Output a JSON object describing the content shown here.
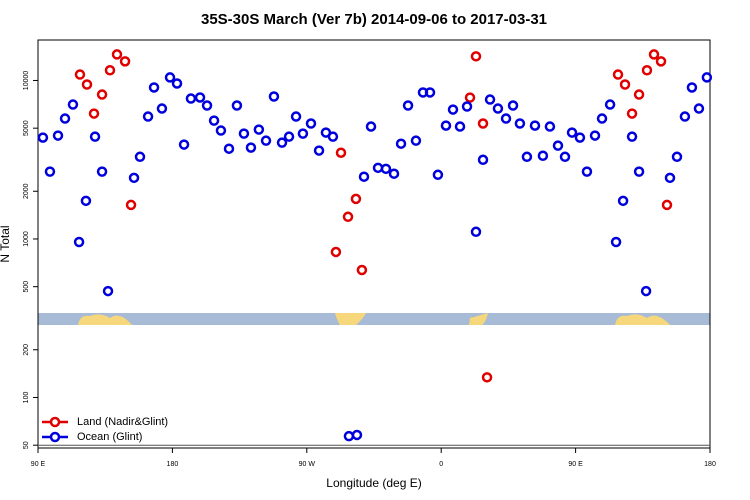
{
  "chart_data": {
    "type": "scatter",
    "title": "35S-30S March (Ver 7b)   2014-09-06 to 2017-03-31",
    "x_label": "Longitude (deg E)",
    "y_label": "N Total",
    "log_y": true,
    "legend": "lower left",
    "xlim": [
      90,
      540
    ],
    "xticks": [
      {
        "value": 90,
        "label": "90 E"
      },
      180,
      {
        "value": 270,
        "label": "90 W"
      },
      {
        "value": 360,
        "label": "0"
      },
      {
        "value": 450,
        "label": "90 E"
      },
      {
        "value": 540,
        "label": "180"
      }
    ],
    "ylim": [
      48,
      18000
    ],
    "yticks": [
      50,
      100,
      200,
      500,
      1000,
      2000,
      5000,
      10000
    ],
    "series": [
      {
        "name": "Land (Nadir&Glint)",
        "color": "#e00000",
        "x": [
          118.1,
          122.8,
          127.5,
          132.9,
          138.2,
          142.9,
          148.3,
          152.3,
          289.5,
          292.9,
          297.6,
          302.9,
          306.9,
          379.3,
          383.3,
          388.0,
          390.7,
          478.4,
          483.1,
          487.8,
          492.5,
          497.8,
          502.5,
          507.2,
          511.2
        ],
        "values": [
          10900,
          9430,
          6180,
          8150,
          11600,
          14600,
          13200,
          1640,
          828,
          3500,
          1380,
          1790,
          637,
          7800,
          14200,
          5350,
          134,
          10900,
          9430,
          6180,
          8150,
          11600,
          14600,
          13200,
          1640
        ]
      },
      {
        "name": "Ocean (Glint)",
        "color": "#0000dd",
        "x": [
          93.3,
          98.0,
          103.4,
          108.1,
          113.4,
          117.5,
          122.1,
          128.2,
          132.9,
          136.9,
          154.3,
          158.3,
          163.7,
          167.7,
          173.0,
          178.4,
          183.1,
          187.8,
          192.4,
          198.5,
          203.2,
          207.9,
          212.5,
          217.9,
          223.2,
          227.9,
          232.6,
          237.9,
          242.7,
          248.0,
          253.4,
          258.1,
          262.8,
          267.4,
          272.8,
          278.2,
          282.8,
          287.5,
          298.2,
          303.6,
          308.3,
          313.0,
          317.7,
          323.0,
          328.4,
          333.1,
          337.8,
          343.1,
          347.8,
          352.5,
          357.8,
          363.2,
          367.9,
          372.6,
          377.3,
          383.3,
          388.0,
          392.7,
          398.0,
          403.4,
          408.1,
          412.7,
          417.4,
          422.8,
          428.1,
          432.8,
          438.2,
          442.9,
          447.6,
          452.9,
          457.6,
          463.0,
          467.7,
          473.1,
          477.1,
          481.8,
          487.8,
          492.5,
          497.2,
          513.2,
          517.9,
          523.2,
          527.9,
          532.6,
          537.9
        ],
        "values": [
          4360,
          2660,
          4490,
          5750,
          7050,
          957,
          1740,
          4420,
          2660,
          469,
          2430,
          3300,
          5920,
          9030,
          6650,
          10450,
          9570,
          3940,
          7690,
          7810,
          6950,
          5580,
          4830,
          3710,
          6950,
          4620,
          3770,
          4900,
          4170,
          7920,
          4050,
          4420,
          5920,
          4620,
          5350,
          3610,
          4690,
          4420,
          57,
          58,
          2470,
          5120,
          2810,
          2770,
          2580,
          3990,
          6950,
          4170,
          8400,
          8400,
          2540,
          5190,
          6550,
          5120,
          6850,
          1110,
          3160,
          7580,
          6650,
          5750,
          6950,
          5350,
          3300,
          5190,
          3350,
          5120,
          3880,
          3300,
          4690,
          4360,
          2660,
          4490,
          5750,
          7050,
          957,
          1740,
          4420,
          2660,
          469,
          2430,
          3300,
          5920,
          9030,
          6650,
          10450
        ]
      }
    ]
  }
}
